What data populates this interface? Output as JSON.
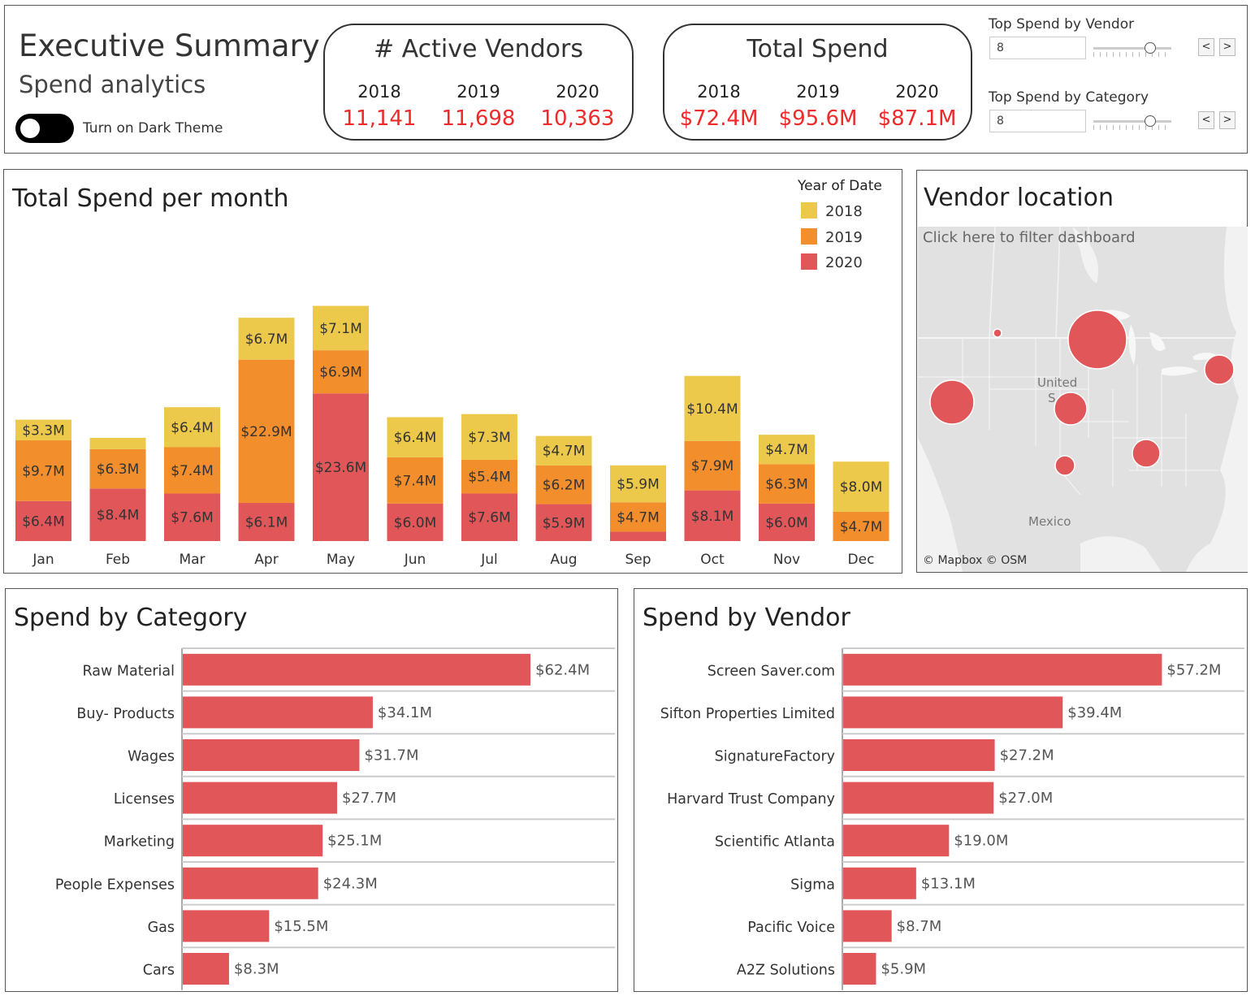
{
  "header": {
    "title": "Executive Summary",
    "subtitle": "Spend analytics",
    "dark_theme_label": "Turn on Dark Theme"
  },
  "kpis": {
    "vendors": {
      "title": "# Active Vendors",
      "items": [
        {
          "year": "2018",
          "value": "11,141"
        },
        {
          "year": "2019",
          "value": "11,698"
        },
        {
          "year": "2020",
          "value": "10,363"
        }
      ]
    },
    "spend": {
      "title": "Total Spend",
      "items": [
        {
          "year": "2018",
          "value": "$72.4M"
        },
        {
          "year": "2019",
          "value": "$95.6M"
        },
        {
          "year": "2020",
          "value": "$87.1M"
        }
      ]
    }
  },
  "parameters": {
    "vendor": {
      "label": "Top Spend by Vendor",
      "value": "8",
      "prev": "<",
      "next": ">"
    },
    "category": {
      "label": "Top Spend by Category",
      "value": "8",
      "prev": "<",
      "next": ">"
    }
  },
  "colors": {
    "y2018": "#ecc94b",
    "y2019": "#f28e2b",
    "y2020": "#e15759",
    "bar": "#e15759",
    "kpi_value": "#ee2a2a"
  },
  "monthly": {
    "title": "Total Spend per month",
    "legend": {
      "title": "Year of Date",
      "items": [
        "2018",
        "2019",
        "2020"
      ]
    }
  },
  "map": {
    "title": "Vendor location",
    "hint": "Click here to filter dashboard",
    "labels": {
      "us": "United",
      "us2": "S",
      "mexico": "Mexico"
    },
    "credit": "© Mapbox  © OSM"
  },
  "category": {
    "title": "Spend by Category"
  },
  "vendor": {
    "title": "Spend by Vendor"
  },
  "chart_data": [
    {
      "type": "bar",
      "stacked": true,
      "title": "Total Spend per month",
      "categories": [
        "Jan",
        "Feb",
        "Mar",
        "Apr",
        "May",
        "Jun",
        "Jul",
        "Aug",
        "Sep",
        "Oct",
        "Nov",
        "Dec"
      ],
      "unit": "$M",
      "series": [
        {
          "name": "2020",
          "values": [
            6.4,
            8.4,
            7.6,
            6.1,
            23.6,
            6.0,
            7.6,
            5.9,
            1.5,
            8.1,
            6.0,
            0
          ],
          "labels": [
            "$6.4M",
            "$8.4M",
            "$7.6M",
            "$6.1M",
            "$23.6M",
            "$6.0M",
            "$7.6M",
            "$5.9M",
            "",
            "$8.1M",
            "$6.0M",
            ""
          ]
        },
        {
          "name": "2019",
          "values": [
            9.7,
            6.3,
            7.4,
            22.9,
            6.9,
            7.4,
            5.4,
            6.2,
            4.7,
            7.9,
            6.3,
            4.7
          ],
          "labels": [
            "$9.7M",
            "$6.3M",
            "$7.4M",
            "$22.9M",
            "$6.9M",
            "$7.4M",
            "$5.4M",
            "$6.2M",
            "$4.7M",
            "$7.9M",
            "$6.3M",
            "$4.7M"
          ]
        },
        {
          "name": "2018",
          "values": [
            3.3,
            1.8,
            6.4,
            6.7,
            7.1,
            6.4,
            7.3,
            4.7,
            5.9,
            10.4,
            4.7,
            8.0
          ],
          "labels": [
            "$3.3M",
            "",
            "$6.4M",
            "$6.7M",
            "$7.1M",
            "$6.4M",
            "$7.3M",
            "$4.7M",
            "$5.9M",
            "$10.4M",
            "$4.7M",
            "$8.0M"
          ]
        }
      ],
      "legend": "top-right",
      "grid": false
    },
    {
      "type": "bar",
      "orientation": "horizontal",
      "title": "Spend by Category",
      "unit": "$M",
      "categories": [
        "Raw Material",
        "Buy- Products",
        "Wages",
        "Licenses",
        "Marketing",
        "People Expenses",
        "Gas",
        "Cars"
      ],
      "values": [
        62.4,
        34.1,
        31.7,
        27.7,
        25.1,
        24.3,
        15.5,
        8.3
      ],
      "labels": [
        "$62.4M",
        "$34.1M",
        "$31.7M",
        "$27.7M",
        "$25.1M",
        "$24.3M",
        "$15.5M",
        "$8.3M"
      ]
    },
    {
      "type": "bar",
      "orientation": "horizontal",
      "title": "Spend by Vendor",
      "unit": "$M",
      "categories": [
        "Screen Saver.com",
        "Sifton Properties Limited",
        "SignatureFactory",
        "Harvard Trust Company",
        "Scientific Atlanta",
        "Sigma",
        "Pacific Voice",
        "A2Z Solutions"
      ],
      "values": [
        57.2,
        39.4,
        27.2,
        27.0,
        19.0,
        13.1,
        8.7,
        5.9
      ],
      "labels": [
        "$57.2M",
        "$39.4M",
        "$27.2M",
        "$27.0M",
        "$19.0M",
        "$13.1M",
        "$8.7M",
        "$5.9M"
      ]
    }
  ]
}
